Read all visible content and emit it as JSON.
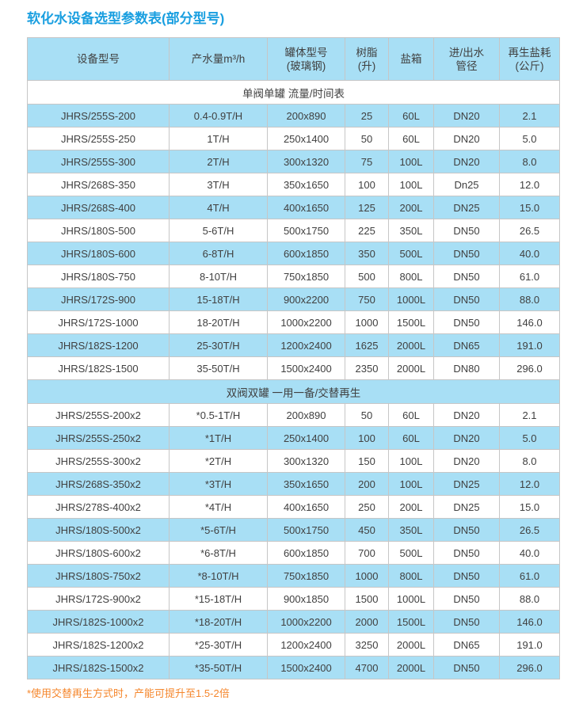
{
  "page": {
    "title": "软化水设备选型参数表(部分型号)",
    "footnote": "*使用交替再生方式时，产能可提升至1.5-2倍"
  },
  "colors": {
    "title_blue": "#1A9FE0",
    "row_blue": "#A8DFF5",
    "border_gray": "#C6C6C6",
    "text_dark": "#404040",
    "footnote_orange": "#F5872D",
    "background": "#FFFFFF"
  },
  "table": {
    "columns": [
      "设备型号",
      "产水量m³/h",
      "罐体型号\n(玻璃钢)",
      "树脂\n(升)",
      "盐箱",
      "进/出水\n管径",
      "再生盐耗\n(公斤)"
    ],
    "sections": [
      {
        "header": "单阀单罐 流量/时间表",
        "rows": [
          [
            "JHRS/255S-200",
            "0.4-0.9T/H",
            "200x890",
            "25",
            "60L",
            "DN20",
            "2.1"
          ],
          [
            "JHRS/255S-250",
            "1T/H",
            "250x1400",
            "50",
            "60L",
            "DN20",
            "5.0"
          ],
          [
            "JHRS/255S-300",
            "2T/H",
            "300x1320",
            "75",
            "100L",
            "DN20",
            "8.0"
          ],
          [
            "JHRS/268S-350",
            "3T/H",
            "350x1650",
            "100",
            "100L",
            "Dn25",
            "12.0"
          ],
          [
            "JHRS/268S-400",
            "4T/H",
            "400x1650",
            "125",
            "200L",
            "DN25",
            "15.0"
          ],
          [
            "JHRS/180S-500",
            "5-6T/H",
            "500x1750",
            "225",
            "350L",
            "DN50",
            "26.5"
          ],
          [
            "JHRS/180S-600",
            "6-8T/H",
            "600x1850",
            "350",
            "500L",
            "DN50",
            "40.0"
          ],
          [
            "JHRS/180S-750",
            "8-10T/H",
            "750x1850",
            "500",
            "800L",
            "DN50",
            "61.0"
          ],
          [
            "JHRS/172S-900",
            "15-18T/H",
            "900x2200",
            "750",
            "1000L",
            "DN50",
            "88.0"
          ],
          [
            "JHRS/172S-1000",
            "18-20T/H",
            "1000x2200",
            "1000",
            "1500L",
            "DN50",
            "146.0"
          ],
          [
            "JHRS/182S-1200",
            "25-30T/H",
            "1200x2400",
            "1625",
            "2000L",
            "DN65",
            "191.0"
          ],
          [
            "JHRS/182S-1500",
            "35-50T/H",
            "1500x2400",
            "2350",
            "2000L",
            "DN80",
            "296.0"
          ]
        ]
      },
      {
        "header": "双阀双罐 一用一备/交替再生",
        "rows": [
          [
            "JHRS/255S-200x2",
            "*0.5-1T/H",
            "200x890",
            "50",
            "60L",
            "DN20",
            "2.1"
          ],
          [
            "JHRS/255S-250x2",
            "*1T/H",
            "250x1400",
            "100",
            "60L",
            "DN20",
            "5.0"
          ],
          [
            "JHRS/255S-300x2",
            "*2T/H",
            "300x1320",
            "150",
            "100L",
            "DN20",
            "8.0"
          ],
          [
            "JHRS/268S-350x2",
            "*3T/H",
            "350x1650",
            "200",
            "100L",
            "DN25",
            "12.0"
          ],
          [
            "JHRS/278S-400x2",
            "*4T/H",
            "400x1650",
            "250",
            "200L",
            "DN25",
            "15.0"
          ],
          [
            "JHRS/180S-500x2",
            "*5-6T/H",
            "500x1750",
            "450",
            "350L",
            "DN50",
            "26.5"
          ],
          [
            "JHRS/180S-600x2",
            "*6-8T/H",
            "600x1850",
            "700",
            "500L",
            "DN50",
            "40.0"
          ],
          [
            "JHRS/180S-750x2",
            "*8-10T/H",
            "750x1850",
            "1000",
            "800L",
            "DN50",
            "61.0"
          ],
          [
            "JHRS/172S-900x2",
            "*15-18T/H",
            "900x1850",
            "1500",
            "1000L",
            "DN50",
            "88.0"
          ],
          [
            "JHRS/182S-1000x2",
            "*18-20T/H",
            "1000x2200",
            "2000",
            "1500L",
            "DN50",
            "146.0"
          ],
          [
            "JHRS/182S-1200x2",
            "*25-30T/H",
            "1200x2400",
            "3250",
            "2000L",
            "DN65",
            "191.0"
          ],
          [
            "JHRS/182S-1500x2",
            "*35-50T/H",
            "1500x2400",
            "4700",
            "2000L",
            "DN50",
            "296.0"
          ]
        ]
      }
    ]
  }
}
